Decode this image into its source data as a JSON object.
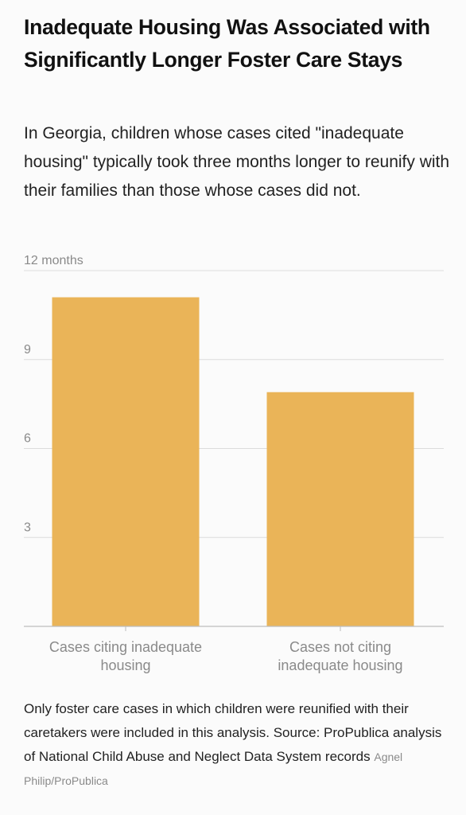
{
  "title": "Inadequate Housing Was Associated with Significantly Longer Foster Care Stays",
  "subtitle": "In Georgia, children whose cases cited \"inadequate housing\" typically took three months longer to reunify with their families than those whose cases did not.",
  "note": "Only foster care cases in which children were reunified with their caretakers were included in this analysis. Source: ProPublica analysis of National Child Abuse and Neglect Data System records",
  "credit": "Agnel Philip/ProPublica",
  "colors": {
    "bar": "#EAB458",
    "grid": "#dcdcdc",
    "axis": "#bdbdbd",
    "tick": "#8a8a8a"
  },
  "chart_data": {
    "type": "bar",
    "categories": [
      [
        "Cases citing inadequate",
        "housing"
      ],
      [
        "Cases not citing",
        "inadequate housing"
      ]
    ],
    "values": [
      11.1,
      7.9
    ],
    "ylim": [
      0,
      12
    ],
    "yticks": [
      3,
      6,
      9,
      12
    ],
    "ytick_labels": [
      "3",
      "6",
      "9",
      "12 months"
    ],
    "grid": true
  }
}
